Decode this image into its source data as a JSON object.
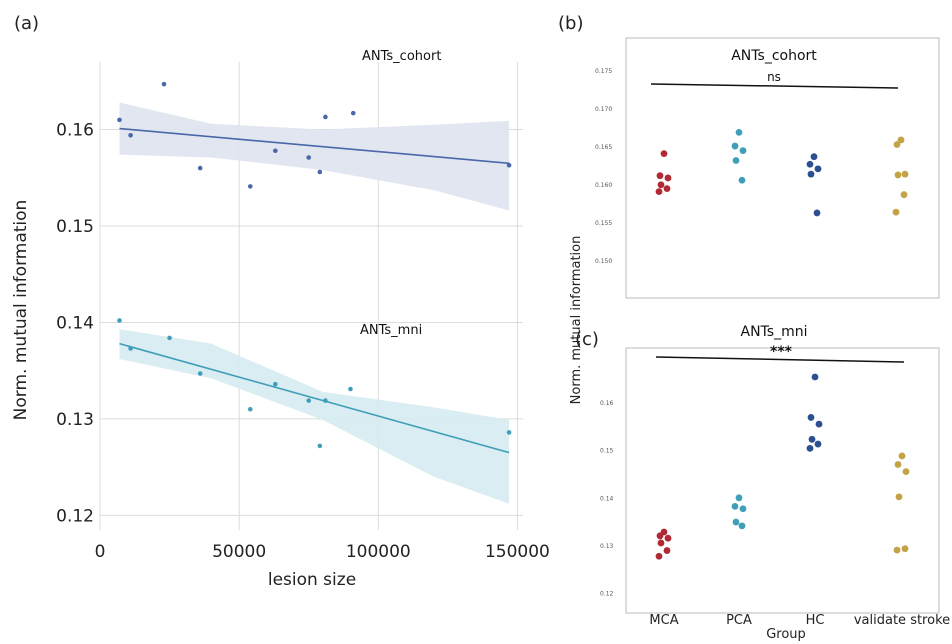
{
  "chart_data": [
    {
      "panel": "(a)",
      "type": "scatter",
      "xlabel": "lesion size",
      "ylabel": "Norm. mutual information",
      "xlim": [
        0,
        152000
      ],
      "ylim": [
        0.119,
        0.167
      ],
      "x_ticks": [
        0,
        50000,
        100000,
        150000
      ],
      "y_ticks": [
        0.12,
        0.13,
        0.14,
        0.15,
        0.16
      ],
      "grid": true,
      "series": [
        {
          "name": "ANTs_cohort",
          "color": "#4a67a8",
          "band_color": "#dfe3f0",
          "points": [
            [
              7000,
              0.161
            ],
            [
              11000,
              0.1594
            ],
            [
              23000,
              0.1647
            ],
            [
              36000,
              0.156
            ],
            [
              54000,
              0.1541
            ],
            [
              63000,
              0.1578
            ],
            [
              75000,
              0.1571
            ],
            [
              79000,
              0.1556
            ],
            [
              81000,
              0.1613
            ],
            [
              91000,
              0.1617
            ],
            [
              147000,
              0.1563
            ]
          ],
          "fit": {
            "x": [
              7000,
              147000
            ],
            "y": [
              0.1601,
              0.1565
            ]
          },
          "band_upper": [
            [
              7000,
              0.1628
            ],
            [
              40000,
              0.1606
            ],
            [
              80000,
              0.16
            ],
            [
              120000,
              0.1605
            ],
            [
              147000,
              0.1609
            ]
          ],
          "band_lower": [
            [
              7000,
              0.1574
            ],
            [
              40000,
              0.1571
            ],
            [
              80000,
              0.1558
            ],
            [
              120000,
              0.1537
            ],
            [
              147000,
              0.1516
            ]
          ]
        },
        {
          "name": "ANTs_mni",
          "color": "#3f9fb8",
          "band_color": "#d5ebf2",
          "points": [
            [
              7000,
              0.1402
            ],
            [
              11000,
              0.1373
            ],
            [
              25000,
              0.1384
            ],
            [
              36000,
              0.1347
            ],
            [
              54000,
              0.131
            ],
            [
              63000,
              0.1336
            ],
            [
              75000,
              0.1319
            ],
            [
              79000,
              0.1272
            ],
            [
              81000,
              0.1319
            ],
            [
              90000,
              0.1331
            ],
            [
              147000,
              0.1286
            ]
          ],
          "fit": {
            "x": [
              7000,
              147000
            ],
            "y": [
              0.1378,
              0.1265
            ]
          },
          "band_upper": [
            [
              7000,
              0.1393
            ],
            [
              40000,
              0.1378
            ],
            [
              80000,
              0.1328
            ],
            [
              120000,
              0.1312
            ],
            [
              147000,
              0.1299
            ]
          ],
          "band_lower": [
            [
              7000,
              0.1362
            ],
            [
              40000,
              0.1342
            ],
            [
              80000,
              0.1299
            ],
            [
              120000,
              0.124
            ],
            [
              147000,
              0.1212
            ]
          ]
        }
      ]
    },
    {
      "panel": "(b)",
      "type": "scatter",
      "title": "ANTs_cohort",
      "significance": "ns",
      "ylabel": "Norm. mutual information",
      "ylim": [
        0.1455,
        0.178
      ],
      "y_ticks": [
        0.15,
        0.155,
        0.16,
        0.165,
        0.17,
        0.175
      ],
      "y_tick_labels": [
        "0.150",
        "0.155",
        "0.160",
        "0.165",
        "0.170",
        "0.175"
      ],
      "categories": [
        "MCA",
        "PCA",
        "HC",
        "validate stroke"
      ],
      "colors": [
        "#b02a36",
        "#3f9fb8",
        "#2c4f8f",
        "#c3a345"
      ],
      "values": [
        [
          0.1641,
          0.1612,
          0.1609,
          0.16,
          0.1595,
          0.1591
        ],
        [
          0.1669,
          0.1651,
          0.1645,
          0.1632,
          0.1606
        ],
        [
          0.1637,
          0.1627,
          0.1621,
          0.1614,
          0.1563
        ],
        [
          0.1659,
          0.1653,
          0.1614,
          0.1613,
          0.1587,
          0.1564
        ]
      ]
    },
    {
      "panel": "(c)",
      "type": "scatter",
      "title": "ANTs_mni",
      "significance": "***",
      "xlabel": "Group",
      "ylim": [
        0.1165,
        0.1695
      ],
      "y_ticks": [
        0.12,
        0.13,
        0.14,
        0.15,
        0.16
      ],
      "y_tick_labels": [
        "0.12",
        "0.13",
        "0.14",
        "0.15",
        "0.16"
      ],
      "categories": [
        "MCA",
        "PCA",
        "HC",
        "validate stroke"
      ],
      "colors": [
        "#b02a36",
        "#3f9fb8",
        "#2c4f8f",
        "#c3a345"
      ],
      "values": [
        [
          0.1329,
          0.1321,
          0.1316,
          0.1306,
          0.129,
          0.1278
        ],
        [
          0.1401,
          0.1383,
          0.1378,
          0.135,
          0.1342
        ],
        [
          0.1655,
          0.157,
          0.1556,
          0.1524,
          0.1514,
          0.1505
        ],
        [
          0.1489,
          0.1471,
          0.1456,
          0.1403,
          0.1294,
          0.1291
        ]
      ]
    }
  ]
}
